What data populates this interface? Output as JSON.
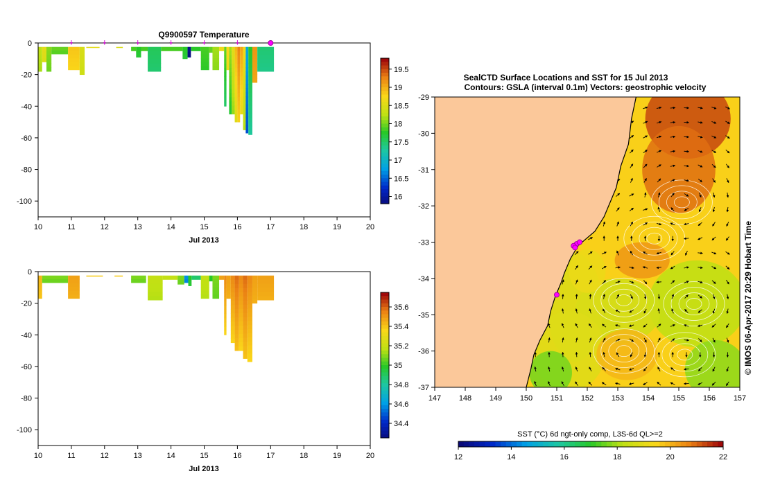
{
  "chart_data": [
    {
      "type": "heatmap",
      "title": "Q9900597  Temperature",
      "xlabel": "Jul 2013",
      "ylabel": "",
      "xlim": [
        10,
        20
      ],
      "ylim": [
        -110,
        0
      ],
      "xticks": [
        10,
        11,
        12,
        13,
        14,
        15,
        16,
        17,
        18,
        19,
        20
      ],
      "yticks": [
        0,
        -20,
        -40,
        -60,
        -80,
        -100
      ],
      "grid": false,
      "markers_days": [
        11,
        12,
        13,
        14,
        15,
        16
      ],
      "end_marker_day": 17,
      "colorbar": {
        "min": 15.8,
        "max": 19.8,
        "ticks": [
          16,
          16.5,
          17,
          17.5,
          18,
          18.5,
          19,
          19.5
        ]
      },
      "profiles": [
        {
          "x0": 10.0,
          "x1": 10.12,
          "depth": 18,
          "value": 18.3
        },
        {
          "x0": 10.12,
          "x1": 10.25,
          "depth": 12,
          "value": 18.6
        },
        {
          "x0": 10.25,
          "x1": 10.4,
          "depth": 18,
          "value": 18.1
        },
        {
          "x0": 10.4,
          "x1": 10.9,
          "depth": 7,
          "value": 18.0
        },
        {
          "x0": 10.9,
          "x1": 11.25,
          "depth": 17,
          "value": 18.9
        },
        {
          "x0": 11.25,
          "x1": 11.4,
          "depth": 20,
          "value": 18.5
        },
        {
          "x0": 11.45,
          "x1": 11.85,
          "depth": 3,
          "value": 18.6
        },
        {
          "x0": 12.35,
          "x1": 12.55,
          "depth": 3,
          "value": 18.5
        },
        {
          "x0": 12.8,
          "x1": 12.95,
          "depth": 5,
          "value": 17.9
        },
        {
          "x0": 12.95,
          "x1": 13.1,
          "depth": 9,
          "value": 17.8
        },
        {
          "x0": 13.1,
          "x1": 13.3,
          "depth": 5,
          "value": 17.9
        },
        {
          "x0": 13.3,
          "x1": 13.7,
          "depth": 18,
          "value": 17.6
        },
        {
          "x0": 13.7,
          "x1": 14.35,
          "depth": 5,
          "value": 17.9
        },
        {
          "x0": 14.35,
          "x1": 14.5,
          "depth": 10,
          "value": 17.8
        },
        {
          "x0": 14.5,
          "x1": 14.6,
          "depth": 9,
          "value": 15.9
        },
        {
          "x0": 14.6,
          "x1": 14.9,
          "depth": 5,
          "value": 17.8
        },
        {
          "x0": 14.9,
          "x1": 15.15,
          "depth": 17,
          "value": 17.9
        },
        {
          "x0": 15.15,
          "x1": 15.25,
          "depth": 6,
          "value": 18.0
        },
        {
          "x0": 15.25,
          "x1": 15.45,
          "depth": 17,
          "value": 18.2
        },
        {
          "x0": 15.45,
          "x1": 15.6,
          "depth": 5,
          "value": 18.7
        },
        {
          "x0": 15.6,
          "x1": 15.67,
          "depth": 40,
          "value": 18.0
        },
        {
          "x0": 15.67,
          "x1": 15.75,
          "depth": 17,
          "value": 18.8
        },
        {
          "x0": 15.75,
          "x1": 15.83,
          "depth": 45,
          "value": 18.2
        },
        {
          "x0": 15.83,
          "x1": 15.92,
          "depth": 45,
          "value": 18.6
        },
        {
          "x0": 15.92,
          "x1": 16.0,
          "depth": 50,
          "value": 19.0
        },
        {
          "x0": 16.0,
          "x1": 16.08,
          "depth": 50,
          "value": 19.3
        },
        {
          "x0": 16.08,
          "x1": 16.17,
          "depth": 45,
          "value": 19.1
        },
        {
          "x0": 16.17,
          "x1": 16.25,
          "depth": 55,
          "value": 18.7
        },
        {
          "x0": 16.25,
          "x1": 16.33,
          "depth": 57,
          "value": 16.9
        },
        {
          "x0": 16.33,
          "x1": 16.45,
          "depth": 58,
          "value": 17.8
        },
        {
          "x0": 16.45,
          "x1": 16.6,
          "depth": 25,
          "value": 19.2
        },
        {
          "x0": 16.6,
          "x1": 17.1,
          "depth": 18,
          "value": 17.5
        }
      ]
    },
    {
      "type": "heatmap",
      "title": "",
      "xlabel": "Jul 2013",
      "ylabel": "",
      "xlim": [
        10,
        20
      ],
      "ylim": [
        -110,
        0
      ],
      "xticks": [
        10,
        11,
        12,
        13,
        14,
        15,
        16,
        17,
        18,
        19,
        20
      ],
      "yticks": [
        0,
        -20,
        -40,
        -60,
        -80,
        -100
      ],
      "grid": false,
      "colorbar": {
        "min": 34.25,
        "max": 35.75,
        "ticks": [
          34.4,
          34.6,
          34.8,
          35,
          35.2,
          35.4,
          35.6
        ]
      },
      "profiles": [
        {
          "x0": 10.0,
          "x1": 10.12,
          "depth": 17,
          "value": 35.45
        },
        {
          "x0": 10.12,
          "x1": 10.9,
          "depth": 7,
          "value": 35.1
        },
        {
          "x0": 10.9,
          "x1": 11.25,
          "depth": 17,
          "value": 35.5
        },
        {
          "x0": 11.45,
          "x1": 11.95,
          "depth": 3,
          "value": 35.4
        },
        {
          "x0": 12.3,
          "x1": 12.55,
          "depth": 3,
          "value": 35.4
        },
        {
          "x0": 12.8,
          "x1": 13.25,
          "depth": 7,
          "value": 35.1
        },
        {
          "x0": 13.3,
          "x1": 13.75,
          "depth": 18,
          "value": 35.2
        },
        {
          "x0": 13.75,
          "x1": 14.2,
          "depth": 5,
          "value": 35.2
        },
        {
          "x0": 14.2,
          "x1": 14.4,
          "depth": 8,
          "value": 35.1
        },
        {
          "x0": 14.4,
          "x1": 14.52,
          "depth": 7,
          "value": 34.6
        },
        {
          "x0": 14.52,
          "x1": 14.62,
          "depth": 9,
          "value": 35.0
        },
        {
          "x0": 14.62,
          "x1": 14.9,
          "depth": 5,
          "value": 34.9
        },
        {
          "x0": 14.9,
          "x1": 15.15,
          "depth": 17,
          "value": 35.2
        },
        {
          "x0": 15.15,
          "x1": 15.25,
          "depth": 6,
          "value": 35.0
        },
        {
          "x0": 15.25,
          "x1": 15.45,
          "depth": 17,
          "value": 35.1
        },
        {
          "x0": 15.45,
          "x1": 15.6,
          "depth": 5,
          "value": 35.5
        },
        {
          "x0": 15.6,
          "x1": 15.67,
          "depth": 40,
          "value": 35.55
        },
        {
          "x0": 15.67,
          "x1": 15.8,
          "depth": 17,
          "value": 35.5
        },
        {
          "x0": 15.8,
          "x1": 15.92,
          "depth": 45,
          "value": 35.55
        },
        {
          "x0": 15.92,
          "x1": 16.05,
          "depth": 50,
          "value": 35.6
        },
        {
          "x0": 16.05,
          "x1": 16.17,
          "depth": 50,
          "value": 35.55
        },
        {
          "x0": 16.17,
          "x1": 16.3,
          "depth": 55,
          "value": 35.6
        },
        {
          "x0": 16.3,
          "x1": 16.45,
          "depth": 57,
          "value": 35.55
        },
        {
          "x0": 16.45,
          "x1": 16.6,
          "depth": 20,
          "value": 35.5
        },
        {
          "x0": 16.6,
          "x1": 17.1,
          "depth": 18,
          "value": 35.5
        }
      ]
    },
    {
      "type": "heatmap",
      "title": "SealCTD Surface Locations and SST for 15 Jul 2013",
      "subtitle": "Contours: GSLA (interval 0.1m) Vectors: geostrophic velocity",
      "xlabel": "",
      "ylabel": "",
      "xlim": [
        147,
        157
      ],
      "ylim": [
        -37,
        -29
      ],
      "xticks": [
        147,
        148,
        149,
        150,
        151,
        152,
        153,
        154,
        155,
        156,
        157
      ],
      "yticks": [
        -29,
        -30,
        -31,
        -32,
        -33,
        -34,
        -35,
        -36,
        -37
      ],
      "side_label": "© IMOS 06-Apr-2017 20:29 Hobart Time",
      "colorbar": {
        "label": "SST (°C) 6d ngt-only comp, L3S-6d QL>=2",
        "min": 12,
        "max": 22,
        "ticks": [
          12,
          14,
          16,
          18,
          20,
          22
        ]
      },
      "seal_locations": [
        {
          "lon": 151.65,
          "lat": -33.05
        },
        {
          "lon": 151.55,
          "lat": -33.1
        },
        {
          "lon": 151.75,
          "lat": -33.0
        },
        {
          "lon": 151.6,
          "lat": -33.15
        },
        {
          "lon": 151.0,
          "lat": -34.45
        }
      ],
      "eddies": [
        {
          "lon": 155.1,
          "lat": -31.9,
          "value": 21.5
        },
        {
          "lon": 154.2,
          "lat": -32.9,
          "value": 20.6
        },
        {
          "lon": 153.2,
          "lat": -34.6,
          "value": 19.2
        },
        {
          "lon": 153.2,
          "lat": -36.0,
          "value": 20.0
        },
        {
          "lon": 155.5,
          "lat": -34.7,
          "value": 18.3
        },
        {
          "lon": 155.2,
          "lat": -36.1,
          "value": 19.6
        }
      ]
    }
  ]
}
